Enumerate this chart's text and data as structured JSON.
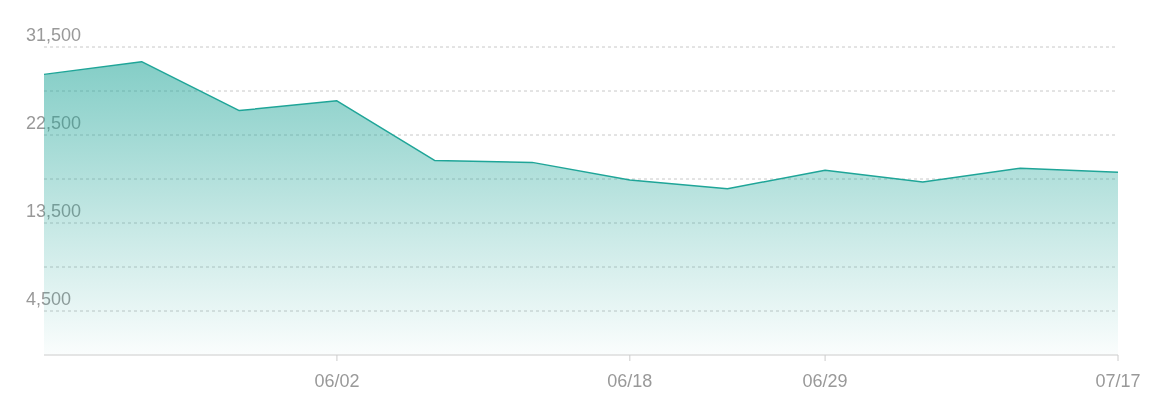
{
  "chart_data": {
    "type": "area",
    "categories": [
      null,
      null,
      null,
      "06/02",
      null,
      null,
      "06/18",
      null,
      "06/29",
      null,
      null,
      "07/17"
    ],
    "series": [
      {
        "color": "#1fa598",
        "values": [
          28700,
          30000,
          25000,
          26000,
          19900,
          19700,
          17900,
          17000,
          18900,
          17700,
          19100,
          18700
        ]
      }
    ],
    "ylim": [
      0,
      31500
    ],
    "yticks": [
      {
        "value": 4500,
        "label": "4,500"
      },
      {
        "value": 9000,
        "label": null
      },
      {
        "value": 13500,
        "label": "13,500"
      },
      {
        "value": 18000,
        "label": null
      },
      {
        "value": 22500,
        "label": "22,500"
      },
      {
        "value": 27000,
        "label": null
      },
      {
        "value": 31500,
        "label": "31,500"
      }
    ],
    "grid": "y"
  }
}
